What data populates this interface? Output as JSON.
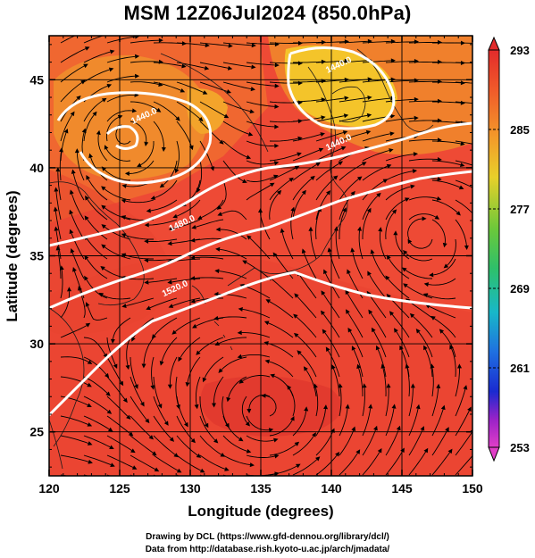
{
  "chart_data": {
    "type": "map",
    "title": "MSM 12Z06Jul2024 (850.0hPa)",
    "xlabel": "Longitude (degrees)",
    "ylabel": "Latitude  (degrees)",
    "xlim": [
      120,
      150
    ],
    "ylim": [
      22.5,
      47.5
    ],
    "x_ticks": [
      120,
      125,
      130,
      135,
      140,
      145,
      150
    ],
    "y_ticks": [
      25,
      30,
      35,
      40,
      45
    ],
    "colorbar": {
      "ticks": [
        293,
        285,
        277,
        269,
        261,
        253
      ],
      "range": [
        253,
        293
      ]
    },
    "contour_labels": [
      {
        "text": "1440.0",
        "lon": 140.6,
        "lat": 45.7
      },
      {
        "text": "1440.0",
        "lon": 126.8,
        "lat": 42.8
      },
      {
        "text": "1440.0",
        "lon": 140.6,
        "lat": 41.3
      },
      {
        "text": "1480.0",
        "lon": 129.5,
        "lat": 36.7
      },
      {
        "text": "1520.0",
        "lon": 129.0,
        "lat": 33.0
      }
    ]
  },
  "credits": {
    "line1": "Drawing by DCL (https://www.gfd-dennou.org/library/dcl/)",
    "line2": "Data from http://database.rish.kyoto-u.ac.jp/arch/jmadata/"
  },
  "colors": {
    "field_base": "#ee4a35",
    "field_warm": "#f07d2a",
    "field_yellow": "#f4c42a",
    "contour": "#ffffff",
    "streamline": "#000000"
  }
}
